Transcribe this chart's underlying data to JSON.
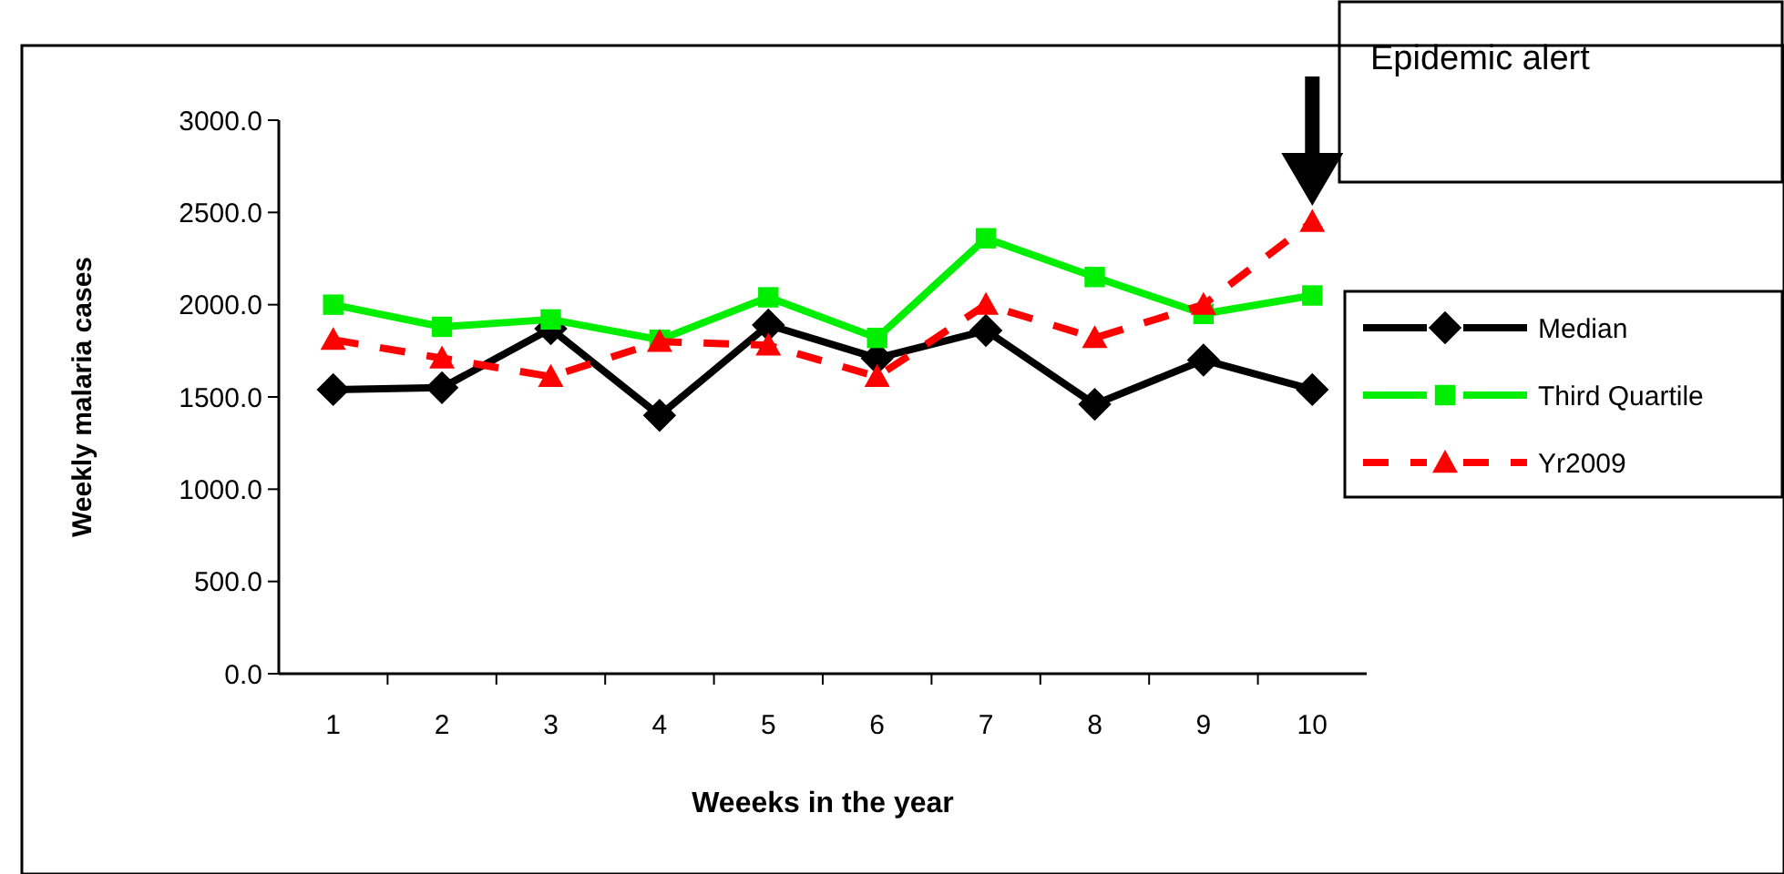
{
  "chart_data": {
    "type": "line",
    "xlabel": "Weeeks in the year",
    "ylabel": "Weekly malaria cases",
    "categories": [
      "1",
      "2",
      "3",
      "4",
      "5",
      "6",
      "7",
      "8",
      "9",
      "10"
    ],
    "series": [
      {
        "name": "Median",
        "color": "#000000",
        "marker": "diamond",
        "line_style": "solid",
        "values": [
          1540,
          1550,
          1870,
          1400,
          1890,
          1710,
          1860,
          1460,
          1700,
          1540
        ]
      },
      {
        "name": "Third Quartile",
        "color": "#00ee00",
        "marker": "square",
        "line_style": "solid",
        "values": [
          2000,
          1880,
          1920,
          1810,
          2040,
          1820,
          2360,
          2150,
          1950,
          2050
        ]
      },
      {
        "name": "Yr2009",
        "color": "#ff0000",
        "marker": "triangle",
        "line_style": "dashed",
        "values": [
          1810,
          1710,
          1610,
          1800,
          1780,
          1610,
          2000,
          1820,
          2000,
          2450
        ]
      }
    ],
    "ylim": [
      0,
      3000
    ],
    "yticks": [
      {
        "value": 0,
        "label": "0.0"
      },
      {
        "value": 500,
        "label": "500.0"
      },
      {
        "value": 1000,
        "label": "1000.0"
      },
      {
        "value": 1500,
        "label": "1500.0"
      },
      {
        "value": 2000,
        "label": "2000.0"
      },
      {
        "value": 2500,
        "label": "2500.0"
      },
      {
        "value": 3000,
        "label": "3000.0"
      }
    ],
    "grid": false,
    "legend": "right",
    "annotations": [
      "Epidemic alert"
    ]
  }
}
